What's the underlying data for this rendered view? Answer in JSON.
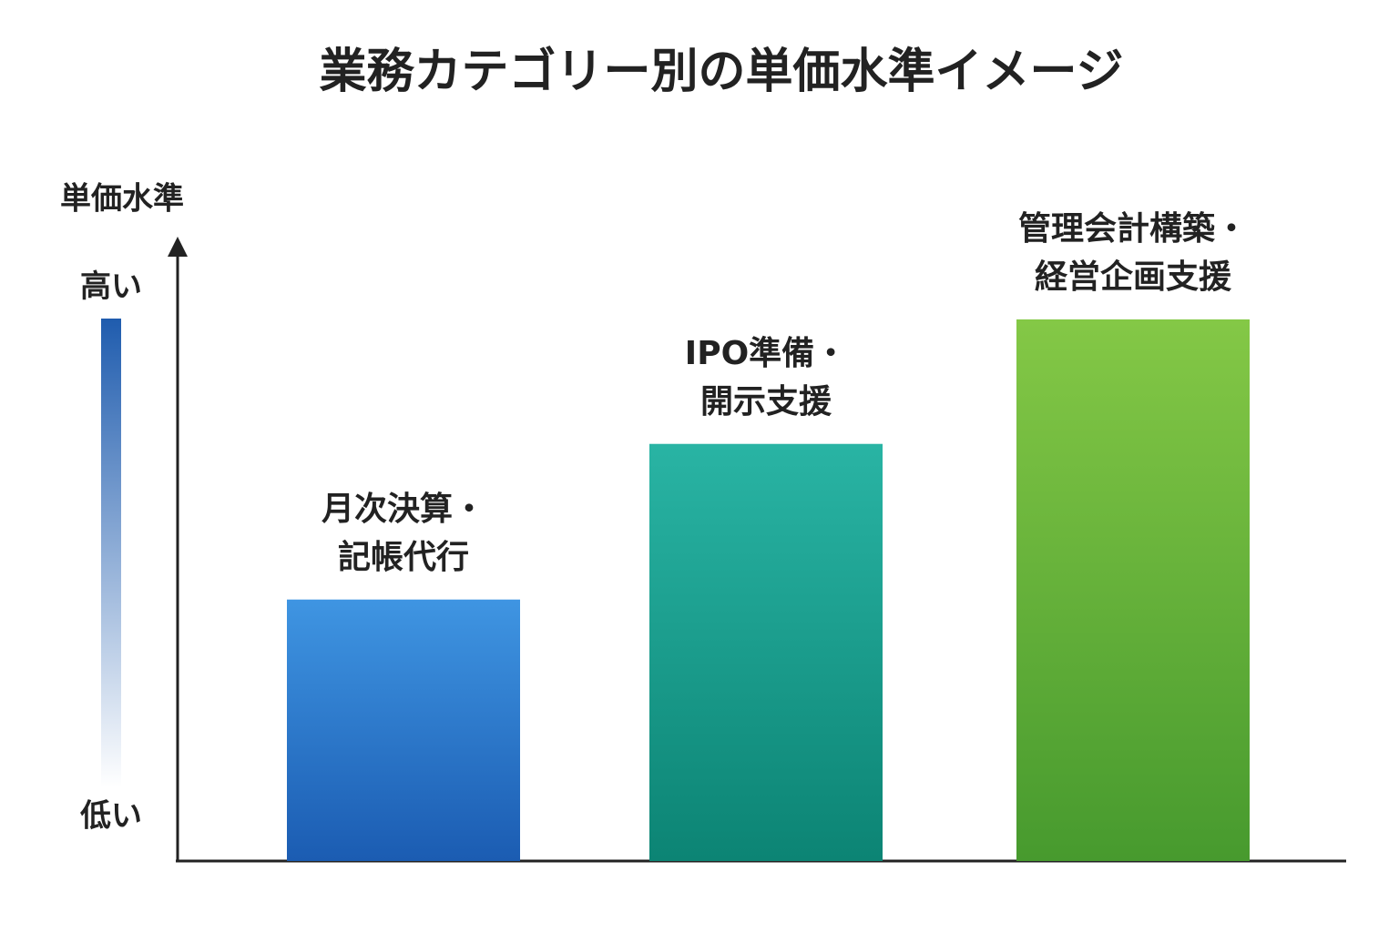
{
  "chart_data": {
    "type": "bar",
    "title": "業務カテゴリー別の単価水準イメージ",
    "y_label": "単価水準",
    "categories": [
      "月次決算・\n記帳代行",
      "IPO準備・\n開示支援",
      "管理会計構築・\n経営企画支援"
    ],
    "values": [
      42,
      67,
      87
    ],
    "colors": [
      [
        "#3f95e2",
        "#1b5cb2"
      ],
      [
        "#29b4a4",
        "#0c8474"
      ],
      [
        "#84c846",
        "#479a2e"
      ]
    ],
    "ylim": [
      0,
      100
    ],
    "yticks": [
      {
        "value": 7,
        "label": "低い"
      },
      {
        "value": 92,
        "label": "高い"
      }
    ]
  }
}
